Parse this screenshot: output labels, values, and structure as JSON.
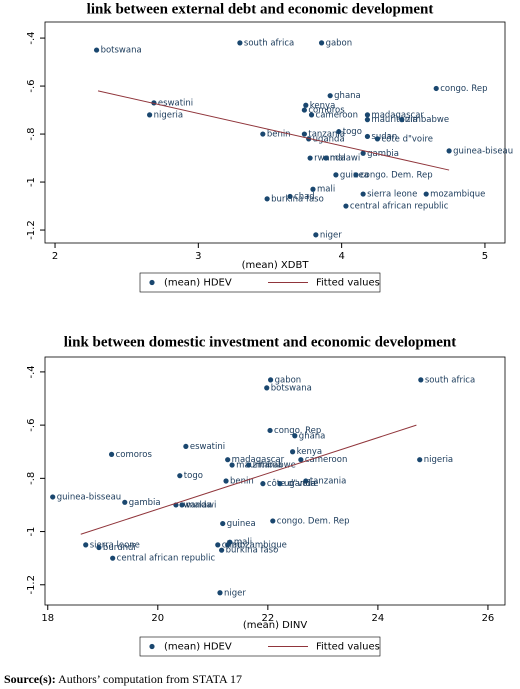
{
  "chart_data": [
    {
      "type": "scatter",
      "title": "link between external debt and economic development",
      "xlabel": "(mean) XDBT",
      "xlim": [
        1.93,
        5.14
      ],
      "ylim": [
        -1.254,
        -0.333
      ],
      "xticks": [
        2,
        3,
        4,
        5
      ],
      "yticks": [
        {
          "value": -0.4,
          "label": "-.4"
        },
        {
          "value": -0.6,
          "label": "-.6"
        },
        {
          "value": -0.8,
          "label": "-.8"
        },
        -1,
        {
          "value": -1.2,
          "label": "-1.2"
        }
      ],
      "series": [
        {
          "name": "(mean) HDEV",
          "type": "scatter",
          "color": "#1a476f",
          "labels": [
            "botswana",
            "south africa",
            "gabon",
            "congo. Rep",
            "ghana",
            "eswatini",
            "nigeria",
            "kenya",
            "comoros",
            "cameroon",
            "madagascar",
            "mauritania",
            "zimbabwe",
            "togo",
            "benin",
            "tanzania",
            "uganda",
            "sudan",
            "côte d\"voire",
            "guinea-biseau",
            "gambia",
            "rwanda",
            "malawi",
            "guinea",
            "congo. Dem. Rep",
            "mali",
            "chad",
            "burkina faso",
            "sierra leone",
            "mozambique",
            "central african republic",
            "niger"
          ],
          "x": [
            2.29,
            3.29,
            3.86,
            4.66,
            3.92,
            2.69,
            2.66,
            3.75,
            3.74,
            3.79,
            4.18,
            4.18,
            4.42,
            3.98,
            3.45,
            3.74,
            3.77,
            4.18,
            4.25,
            4.75,
            4.15,
            3.78,
            3.89,
            3.96,
            4.1,
            3.8,
            3.64,
            3.48,
            4.15,
            4.59,
            4.03,
            3.82
          ],
          "values": [
            -0.45,
            -0.42,
            -0.42,
            -0.61,
            -0.64,
            -0.67,
            -0.72,
            -0.68,
            -0.7,
            -0.72,
            -0.72,
            -0.74,
            -0.74,
            -0.79,
            -0.8,
            -0.8,
            -0.82,
            -0.81,
            -0.82,
            -0.87,
            -0.88,
            -0.9,
            -0.9,
            -0.97,
            -0.97,
            -1.03,
            -1.06,
            -1.07,
            -1.05,
            -1.05,
            -1.1,
            -1.22
          ]
        },
        {
          "name": "Fitted values",
          "type": "line",
          "color": "#90353b",
          "x": [
            2.3,
            4.75
          ],
          "values": [
            -0.62,
            -0.95
          ]
        }
      ]
    },
    {
      "type": "scatter",
      "title": "link between domestic investment and economic development",
      "xlabel": "(mean) DINV",
      "xlim": [
        17.95,
        26.31
      ],
      "ylim": [
        -1.276,
        -0.344
      ],
      "xticks": [
        18,
        20,
        22,
        24,
        26
      ],
      "yticks": [
        {
          "value": -0.4,
          "label": "-.4"
        },
        {
          "value": -0.6,
          "label": "-.6"
        },
        {
          "value": -0.8,
          "label": "-.8"
        },
        -1,
        {
          "value": -1.2,
          "label": "-1.2"
        }
      ],
      "series": [
        {
          "name": "(mean) HDEV",
          "type": "scatter",
          "color": "#1a476f",
          "labels": [
            "gabon",
            "botswana",
            "south africa",
            "congo. Rep",
            "ghana",
            "eswatini",
            "comoros",
            "kenya",
            "madagascar",
            "cameroon",
            "nigeria",
            "mauritania",
            "zimbabwe",
            "togo",
            "benin",
            "tanzania",
            "côte d\"voire",
            "uganda",
            "guinea-bisseau",
            "gambia",
            "rwanda",
            "malawi",
            "guinea",
            "congo. Dem. Rep",
            "mali",
            "sierra leone",
            "burundi",
            "chad",
            "mozambique",
            "burkina faso",
            "central african republic",
            "niger"
          ],
          "x": [
            22.05,
            21.98,
            24.78,
            22.04,
            22.49,
            20.51,
            19.16,
            22.45,
            21.27,
            22.6,
            24.76,
            21.35,
            21.65,
            20.4,
            21.24,
            22.69,
            21.91,
            22.22,
            18.09,
            19.4,
            20.33,
            20.44,
            21.18,
            22.09,
            21.31,
            18.69,
            18.93,
            21.09,
            21.27,
            21.16,
            19.18,
            21.13
          ],
          "values": [
            -0.43,
            -0.46,
            -0.43,
            -0.62,
            -0.64,
            -0.68,
            -0.71,
            -0.7,
            -0.73,
            -0.73,
            -0.73,
            -0.75,
            -0.75,
            -0.79,
            -0.81,
            -0.81,
            -0.82,
            -0.82,
            -0.87,
            -0.89,
            -0.9,
            -0.9,
            -0.97,
            -0.96,
            -1.04,
            -1.05,
            -1.06,
            -1.05,
            -1.05,
            -1.07,
            -1.1,
            -1.23
          ]
        },
        {
          "name": "Fitted values",
          "type": "line",
          "color": "#90353b",
          "x": [
            18.6,
            24.7
          ],
          "values": [
            -1.01,
            -0.6
          ]
        }
      ]
    }
  ],
  "source": {
    "label": "Source(s):",
    "text": "Authors’ computation from STATA 17"
  }
}
